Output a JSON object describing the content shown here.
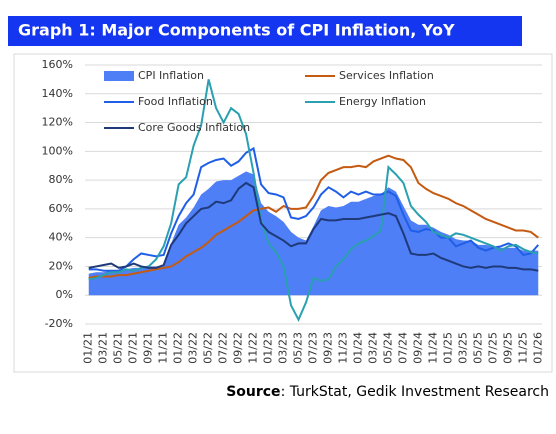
{
  "chart_data": {
    "type": "line",
    "title": "Graph 1: Major Components of CPI Inflation, YoY",
    "source_label": "Source",
    "source_text": ": TurkStat, Gedik Investment Research",
    "categories": [
      "01/21",
      null,
      "03/21",
      null,
      "05/21",
      null,
      "07/21",
      null,
      "09/21",
      null,
      "11/21",
      null,
      "01/22",
      null,
      "03/22",
      null,
      "05/22",
      null,
      "07/22",
      null,
      "09/22",
      null,
      "11/22",
      null,
      "01/23",
      null,
      "03/23",
      null,
      "05/23",
      null,
      "07/23",
      null,
      "09/23",
      null,
      "11/23",
      null,
      "01/24",
      null,
      "03/24",
      null,
      "05/24",
      null,
      "07/24",
      null,
      "09/24",
      null,
      "11/24",
      null,
      "01/25",
      null,
      "03/25",
      null,
      "05/25",
      null,
      "07/25",
      null,
      "09/25",
      null,
      "11/25",
      null,
      "01/26"
    ],
    "series": [
      {
        "name": "CPI Inflation",
        "style": "area",
        "color": "#4f7ff6",
        "values": [
          15,
          16,
          16,
          17,
          17,
          18,
          19,
          19,
          20,
          20,
          21,
          36,
          49,
          54,
          61,
          70,
          74,
          79,
          80,
          80,
          83,
          86,
          84,
          64,
          58,
          55,
          51,
          44,
          40,
          38,
          48,
          59,
          62,
          61,
          62,
          65,
          65,
          67,
          69,
          70,
          75,
          72,
          62,
          52,
          49,
          49,
          47,
          44,
          42,
          39,
          38,
          38,
          35,
          35,
          34,
          33,
          33,
          33,
          31,
          31,
          31
        ]
      },
      {
        "name": "Services Inflation",
        "style": "line",
        "color": "#c55a11",
        "values": [
          12,
          13,
          13,
          13,
          14,
          14,
          15,
          16,
          17,
          18,
          19,
          20,
          23,
          27,
          30,
          33,
          37,
          42,
          45,
          48,
          51,
          55,
          59,
          60,
          61,
          58,
          62,
          60,
          60,
          61,
          69,
          80,
          85,
          87,
          89,
          89,
          90,
          89,
          93,
          95,
          97,
          95,
          94,
          89,
          78,
          74,
          71,
          69,
          67,
          64,
          62,
          59,
          56,
          53,
          51,
          49,
          47,
          45,
          45,
          44,
          40
        ]
      },
      {
        "name": "Food Inflation",
        "style": "line",
        "color": "#1f5fe8",
        "values": [
          18,
          18,
          17,
          17,
          17,
          20,
          25,
          29,
          28,
          27,
          28,
          43,
          55,
          64,
          70,
          89,
          92,
          94,
          95,
          90,
          93,
          99,
          102,
          77,
          71,
          70,
          68,
          54,
          53,
          55,
          61,
          70,
          75,
          72,
          68,
          72,
          70,
          72,
          70,
          70,
          72,
          69,
          56,
          45,
          44,
          46,
          45,
          40,
          40,
          34,
          36,
          38,
          33,
          31,
          33,
          34,
          36,
          34,
          28,
          29,
          35
        ]
      },
      {
        "name": "Energy Inflation",
        "style": "line",
        "color": "#2aa0b0",
        "values": [
          11,
          12,
          14,
          16,
          16,
          18,
          17,
          19,
          20,
          25,
          34,
          50,
          77,
          82,
          104,
          118,
          150,
          130,
          120,
          130,
          126,
          112,
          85,
          52,
          36,
          30,
          20,
          -7,
          -17,
          -5,
          12,
          10,
          11,
          20,
          25,
          32,
          36,
          38,
          41,
          45,
          89,
          84,
          78,
          62,
          56,
          51,
          44,
          42,
          40,
          43,
          42,
          40,
          38,
          36,
          34,
          31,
          34,
          35,
          32,
          30,
          29
        ]
      },
      {
        "name": "Core Goods Inflation",
        "style": "line",
        "color": "#1f3a7a",
        "values": [
          19,
          20,
          21,
          22,
          19,
          20,
          22,
          20,
          19,
          19,
          21,
          35,
          42,
          50,
          55,
          60,
          61,
          65,
          64,
          66,
          74,
          78,
          75,
          50,
          44,
          41,
          38,
          34,
          36,
          36,
          46,
          53,
          52,
          52,
          53,
          53,
          53,
          54,
          55,
          56,
          57,
          55,
          43,
          29,
          28,
          28,
          29,
          26,
          24,
          22,
          20,
          19,
          20,
          19,
          20,
          20,
          19,
          19,
          18,
          18,
          17
        ]
      }
    ],
    "ylim": [
      -20,
      160
    ],
    "yticks": [
      {
        "value": -20,
        "label": "-20%"
      },
      {
        "value": 0,
        "label": "0%"
      },
      {
        "value": 20,
        "label": "20%"
      },
      {
        "value": 40,
        "label": "40%"
      },
      {
        "value": 60,
        "label": "60%"
      },
      {
        "value": 80,
        "label": "80%"
      },
      {
        "value": 100,
        "label": "100%"
      },
      {
        "value": 120,
        "label": "120%"
      },
      {
        "value": 140,
        "label": "140%"
      },
      {
        "value": 160,
        "label": "160%"
      }
    ],
    "grid": true
  }
}
